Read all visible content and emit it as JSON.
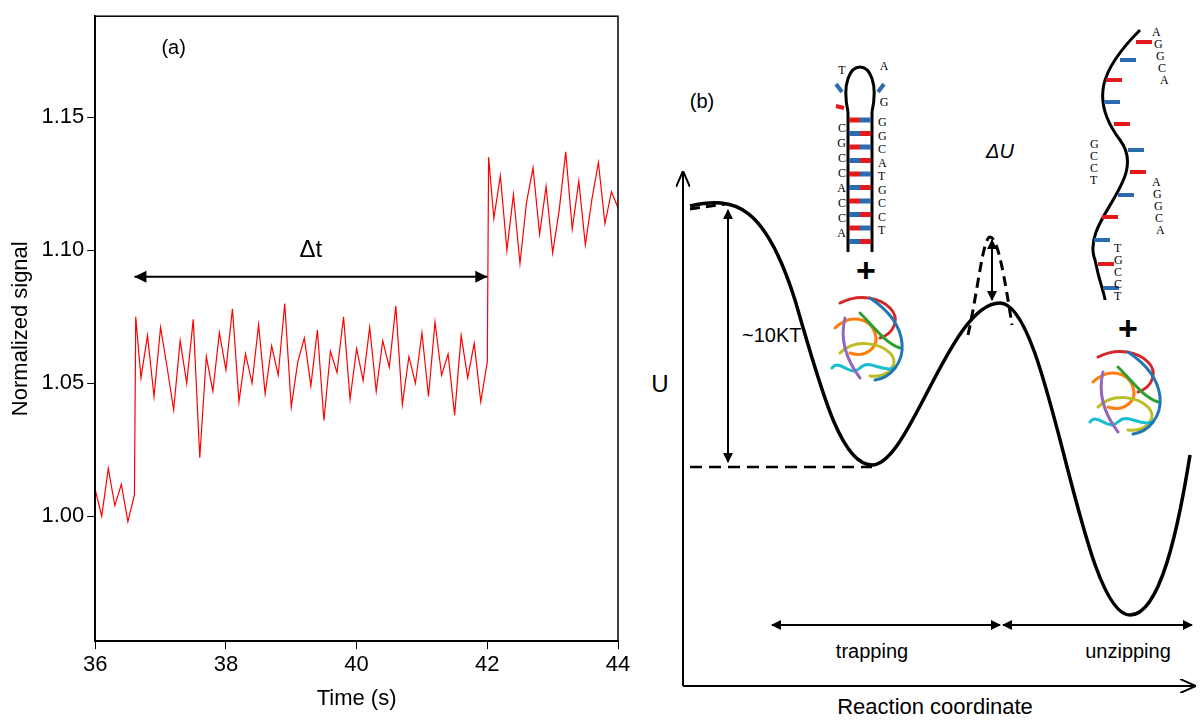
{
  "chart_data": {
    "type": "line",
    "x_label": "Time (s)",
    "y_label": "Normalized signal",
    "color": "#ff0000",
    "x": [
      36,
      36.1,
      36.2,
      36.3,
      36.4,
      36.5,
      36.6,
      36.62,
      36.7,
      36.8,
      36.9,
      37,
      37.1,
      37.2,
      37.3,
      37.4,
      37.5,
      37.6,
      37.7,
      37.8,
      37.9,
      38,
      38.1,
      38.2,
      38.3,
      38.4,
      38.5,
      38.6,
      38.7,
      38.8,
      38.9,
      39,
      39.1,
      39.2,
      39.3,
      39.4,
      39.5,
      39.6,
      39.7,
      39.8,
      39.9,
      40,
      40.1,
      40.2,
      40.3,
      40.4,
      40.5,
      40.6,
      40.7,
      40.8,
      40.9,
      41,
      41.1,
      41.2,
      41.3,
      41.4,
      41.5,
      41.6,
      41.7,
      41.8,
      41.9,
      42,
      42.02,
      42.1,
      42.2,
      42.3,
      42.4,
      42.5,
      42.6,
      42.7,
      42.8,
      42.9,
      43,
      43.1,
      43.2,
      43.3,
      43.4,
      43.5,
      43.6,
      43.7,
      43.8,
      43.9,
      44
    ],
    "values": [
      1.01,
      1.0,
      1.018,
      1.004,
      1.012,
      0.998,
      1.008,
      1.075,
      1.052,
      1.068,
      1.045,
      1.071,
      1.056,
      1.04,
      1.066,
      1.05,
      1.074,
      1.022,
      1.06,
      1.047,
      1.069,
      1.055,
      1.078,
      1.043,
      1.061,
      1.05,
      1.072,
      1.046,
      1.064,
      1.053,
      1.08,
      1.041,
      1.058,
      1.067,
      1.049,
      1.07,
      1.036,
      1.062,
      1.054,
      1.075,
      1.044,
      1.063,
      1.051,
      1.071,
      1.047,
      1.066,
      1.056,
      1.079,
      1.042,
      1.06,
      1.05,
      1.069,
      1.045,
      1.073,
      1.053,
      1.061,
      1.038,
      1.068,
      1.052,
      1.065,
      1.043,
      1.058,
      1.135,
      1.112,
      1.128,
      1.1,
      1.121,
      1.095,
      1.118,
      1.131,
      1.106,
      1.124,
      1.099,
      1.115,
      1.137,
      1.108,
      1.126,
      1.102,
      1.119,
      1.133,
      1.11,
      1.122,
      1.116
    ],
    "xlim": [
      36,
      44
    ],
    "xticks": [
      36,
      38,
      40,
      42,
      44
    ],
    "ylim": [
      0.953,
      1.188
    ],
    "yticks": [
      {
        "value": 1,
        "label": "1.00"
      },
      1.05,
      {
        "value": 1.1,
        "label": "1.10"
      },
      1.15
    ],
    "grid": false,
    "annotations": [
      {
        "text": "(a)",
        "x": 37.2,
        "y": 1.176
      },
      {
        "text": "Δt",
        "x_from": 36.6,
        "x_to": 42.0,
        "y": 1.09
      }
    ]
  },
  "diagram": {
    "label": "(b)",
    "y_axis": "U",
    "x_axis": "Reaction coordinate",
    "barrier": "~10KT",
    "barrier_change": "ΔU",
    "regions": [
      "trapping",
      "unzipping"
    ],
    "join": "+",
    "hairpin": {
      "loop": [
        "T",
        "A",
        "G"
      ],
      "left": [
        "C",
        "G",
        "C",
        "C",
        "A",
        "C",
        "C",
        "A"
      ],
      "right": [
        "G",
        "G",
        "C",
        "A",
        "T",
        "G",
        "C",
        "C",
        "T"
      ]
    },
    "strand": [
      [
        "A",
        "G",
        "G",
        "C",
        "A"
      ],
      [
        "G",
        "C",
        "C",
        "T"
      ],
      [
        "A",
        "G",
        "G",
        "C",
        "A"
      ],
      [
        "T",
        "G",
        "C",
        "C",
        "T"
      ]
    ]
  }
}
